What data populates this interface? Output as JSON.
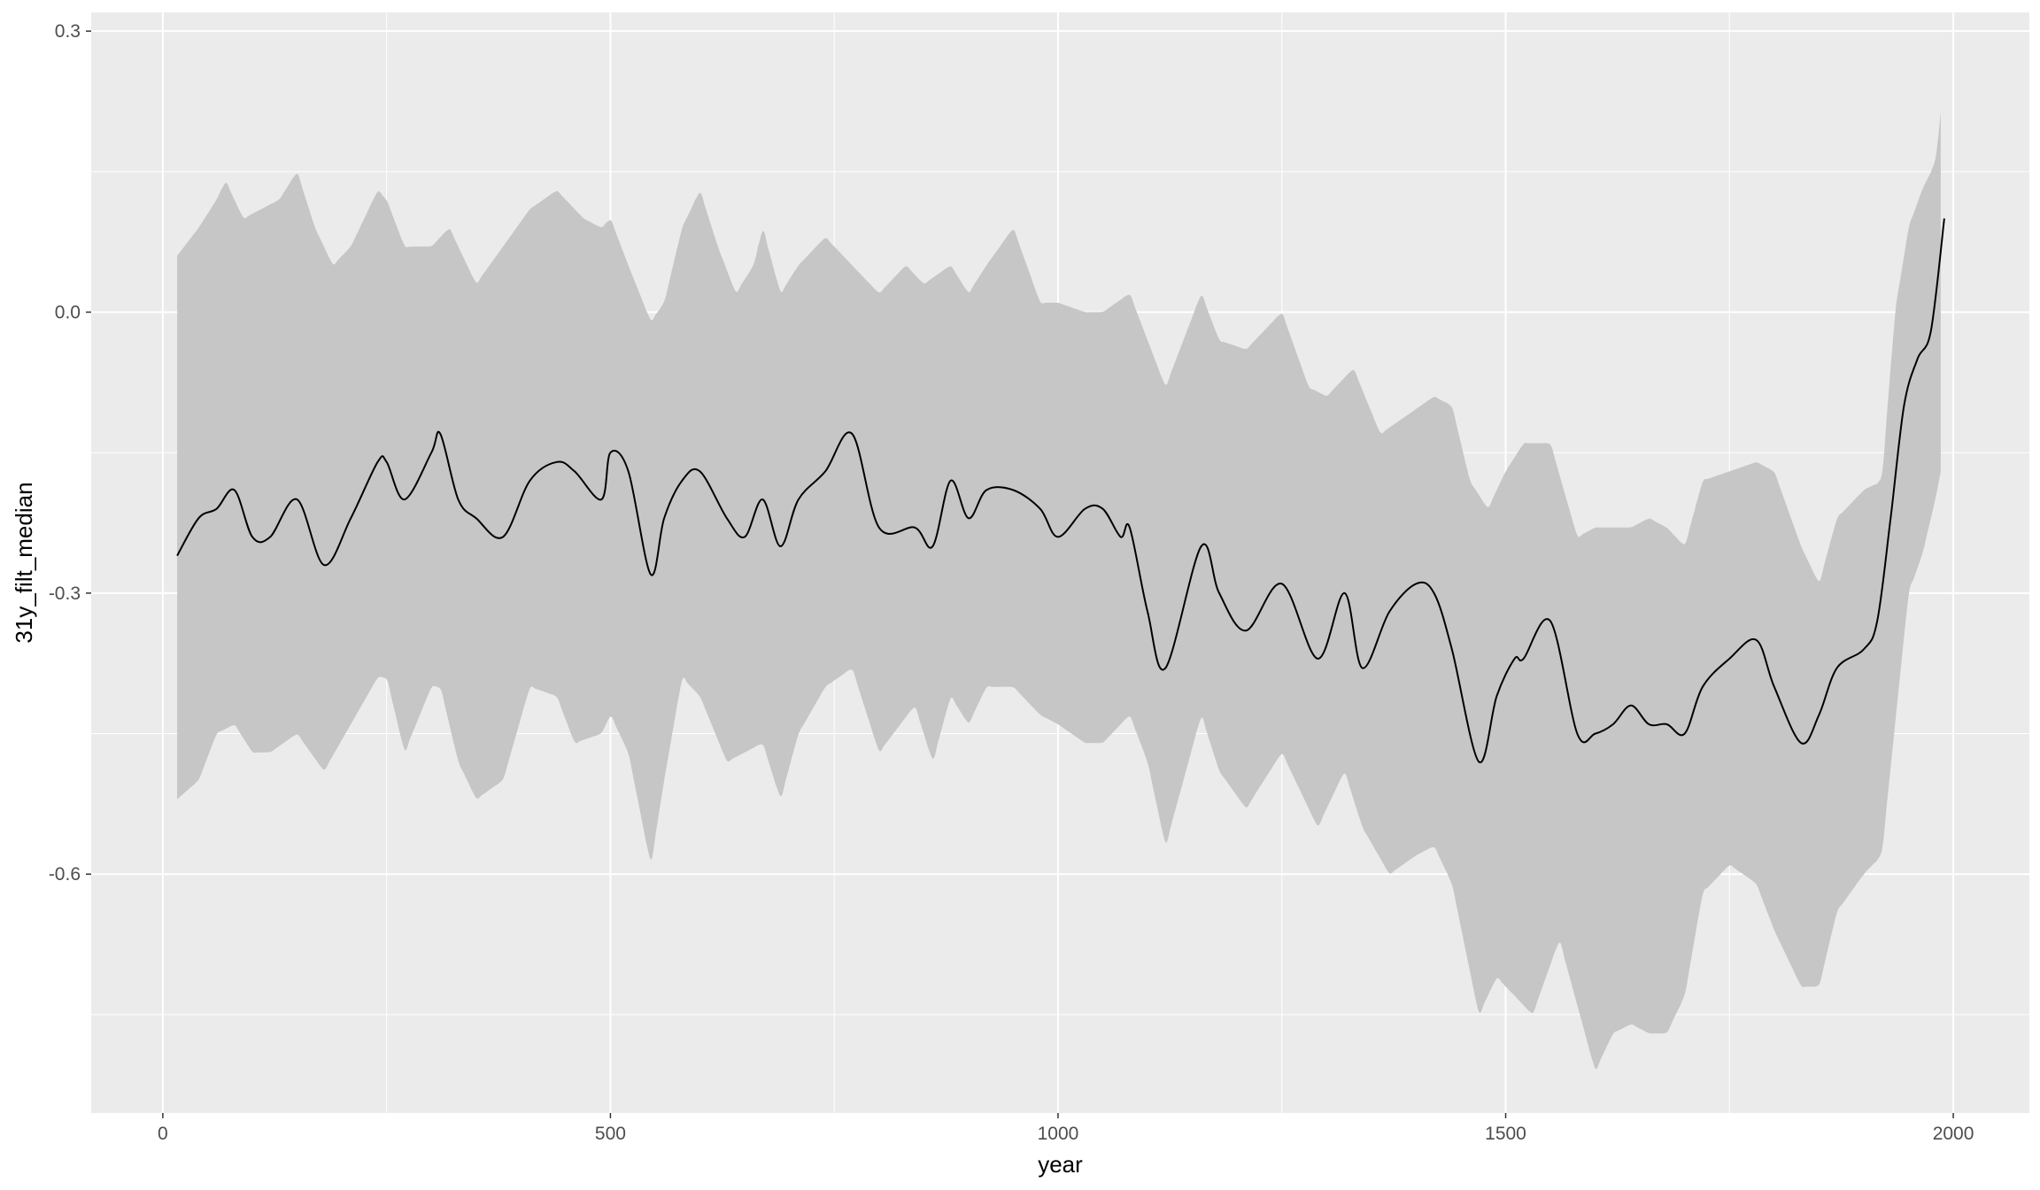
{
  "chart_data": {
    "type": "line",
    "title": "",
    "xlabel": "year",
    "ylabel": "31y_filt_median",
    "xlim": [
      -80,
      2085
    ],
    "ylim": [
      -0.855,
      0.32
    ],
    "x_ticks": [
      0,
      500,
      1000,
      1500,
      2000
    ],
    "x_tick_labels": [
      "0",
      "500",
      "1000",
      "1500",
      "2000"
    ],
    "y_ticks": [
      0.3,
      0.0,
      -0.3,
      -0.6
    ],
    "y_tick_labels": [
      "0.3",
      "0.0",
      "-0.3",
      "-0.6"
    ],
    "x_minor": [
      250,
      750,
      1250,
      1750
    ],
    "y_minor": [
      0.15,
      -0.15,
      -0.45,
      -0.75
    ],
    "grid": true,
    "legend": "none",
    "colors": {
      "panel": "#ebebeb",
      "grid": "#ffffff",
      "ribbon": "#c6c6c6",
      "line": "#000000"
    },
    "series": [
      {
        "role": "median",
        "x": [
          16,
          40,
          60,
          80,
          100,
          120,
          150,
          180,
          210,
          240,
          250,
          270,
          300,
          310,
          330,
          350,
          380,
          410,
          440,
          460,
          490,
          500,
          520,
          545,
          560,
          580,
          600,
          630,
          650,
          670,
          690,
          710,
          740,
          770,
          800,
          840,
          860,
          880,
          900,
          920,
          950,
          980,
          1000,
          1030,
          1050,
          1070,
          1080,
          1100,
          1120,
          1160,
          1180,
          1210,
          1250,
          1290,
          1320,
          1340,
          1370,
          1400,
          1420,
          1440,
          1470,
          1490,
          1510,
          1520,
          1550,
          1580,
          1600,
          1620,
          1640,
          1660,
          1680,
          1700,
          1720,
          1750,
          1780,
          1800,
          1830,
          1850,
          1870,
          1900,
          1915,
          1930,
          1945,
          1960,
          1975,
          1990
        ],
        "y": [
          -0.26,
          -0.22,
          -0.21,
          -0.19,
          -0.24,
          -0.24,
          -0.2,
          -0.27,
          -0.22,
          -0.16,
          -0.16,
          -0.2,
          -0.15,
          -0.13,
          -0.2,
          -0.22,
          -0.24,
          -0.18,
          -0.16,
          -0.17,
          -0.2,
          -0.15,
          -0.17,
          -0.28,
          -0.22,
          -0.18,
          -0.17,
          -0.22,
          -0.24,
          -0.2,
          -0.25,
          -0.2,
          -0.17,
          -0.13,
          -0.23,
          -0.23,
          -0.25,
          -0.18,
          -0.22,
          -0.19,
          -0.19,
          -0.21,
          -0.24,
          -0.21,
          -0.21,
          -0.24,
          -0.23,
          -0.32,
          -0.38,
          -0.25,
          -0.3,
          -0.34,
          -0.29,
          -0.37,
          -0.3,
          -0.38,
          -0.32,
          -0.29,
          -0.3,
          -0.36,
          -0.48,
          -0.41,
          -0.37,
          -0.37,
          -0.33,
          -0.45,
          -0.45,
          -0.44,
          -0.42,
          -0.44,
          -0.44,
          -0.45,
          -0.4,
          -0.37,
          -0.35,
          -0.4,
          -0.46,
          -0.43,
          -0.38,
          -0.36,
          -0.33,
          -0.22,
          -0.1,
          -0.05,
          -0.02,
          0.1
        ]
      },
      {
        "role": "upper-bound",
        "x": [
          16,
          40,
          60,
          70,
          90,
          110,
          130,
          150,
          170,
          190,
          210,
          240,
          250,
          270,
          300,
          320,
          350,
          380,
          410,
          440,
          470,
          490,
          500,
          520,
          545,
          560,
          580,
          600,
          620,
          640,
          660,
          670,
          690,
          710,
          740,
          770,
          800,
          830,
          850,
          880,
          900,
          920,
          950,
          980,
          1000,
          1030,
          1050,
          1080,
          1100,
          1120,
          1160,
          1180,
          1210,
          1250,
          1280,
          1300,
          1330,
          1360,
          1390,
          1420,
          1440,
          1460,
          1480,
          1500,
          1520,
          1550,
          1580,
          1600,
          1620,
          1640,
          1660,
          1680,
          1700,
          1720,
          1750,
          1780,
          1800,
          1830,
          1850,
          1870,
          1900,
          1920,
          1935,
          1950,
          1965,
          1980,
          1990
        ],
        "y": [
          0.06,
          0.09,
          0.12,
          0.14,
          0.1,
          0.11,
          0.12,
          0.15,
          0.09,
          0.05,
          0.07,
          0.13,
          0.12,
          0.07,
          0.07,
          0.09,
          0.03,
          0.07,
          0.11,
          0.13,
          0.1,
          0.09,
          0.1,
          0.05,
          -0.01,
          0.01,
          0.09,
          0.13,
          0.07,
          0.02,
          0.05,
          0.09,
          0.02,
          0.05,
          0.08,
          0.05,
          0.02,
          0.05,
          0.03,
          0.05,
          0.02,
          0.05,
          0.09,
          0.01,
          0.01,
          0.0,
          0.0,
          0.02,
          -0.03,
          -0.08,
          0.02,
          -0.03,
          -0.04,
          0.0,
          -0.08,
          -0.09,
          -0.06,
          -0.13,
          -0.11,
          -0.09,
          -0.1,
          -0.18,
          -0.21,
          -0.17,
          -0.14,
          -0.14,
          -0.24,
          -0.23,
          -0.23,
          -0.23,
          -0.22,
          -0.23,
          -0.25,
          -0.18,
          -0.17,
          -0.16,
          -0.17,
          -0.25,
          -0.29,
          -0.22,
          -0.19,
          -0.18,
          0.0,
          0.09,
          0.13,
          0.16,
          0.25
        ]
      },
      {
        "role": "lower-bound",
        "x": [
          16,
          40,
          60,
          80,
          100,
          120,
          150,
          180,
          210,
          240,
          250,
          270,
          300,
          310,
          330,
          350,
          380,
          410,
          440,
          460,
          490,
          500,
          520,
          545,
          560,
          580,
          600,
          630,
          650,
          670,
          690,
          710,
          740,
          770,
          800,
          840,
          860,
          880,
          900,
          920,
          950,
          980,
          1000,
          1030,
          1050,
          1080,
          1100,
          1120,
          1160,
          1180,
          1210,
          1250,
          1290,
          1320,
          1340,
          1370,
          1400,
          1420,
          1440,
          1470,
          1490,
          1510,
          1530,
          1560,
          1580,
          1600,
          1620,
          1640,
          1660,
          1680,
          1700,
          1720,
          1750,
          1780,
          1800,
          1830,
          1850,
          1870,
          1900,
          1920,
          1935,
          1950,
          1965,
          1980,
          1990
        ],
        "y": [
          -0.52,
          -0.5,
          -0.45,
          -0.44,
          -0.47,
          -0.47,
          -0.45,
          -0.49,
          -0.44,
          -0.39,
          -0.39,
          -0.47,
          -0.4,
          -0.4,
          -0.48,
          -0.52,
          -0.5,
          -0.4,
          -0.41,
          -0.46,
          -0.45,
          -0.43,
          -0.47,
          -0.59,
          -0.5,
          -0.39,
          -0.41,
          -0.48,
          -0.47,
          -0.46,
          -0.52,
          -0.45,
          -0.4,
          -0.38,
          -0.47,
          -0.42,
          -0.48,
          -0.41,
          -0.44,
          -0.4,
          -0.4,
          -0.43,
          -0.44,
          -0.46,
          -0.46,
          -0.43,
          -0.48,
          -0.57,
          -0.43,
          -0.49,
          -0.53,
          -0.47,
          -0.55,
          -0.49,
          -0.55,
          -0.6,
          -0.58,
          -0.57,
          -0.61,
          -0.75,
          -0.71,
          -0.73,
          -0.75,
          -0.67,
          -0.74,
          -0.81,
          -0.77,
          -0.76,
          -0.77,
          -0.77,
          -0.73,
          -0.62,
          -0.59,
          -0.61,
          -0.66,
          -0.72,
          -0.72,
          -0.64,
          -0.6,
          -0.58,
          -0.44,
          -0.3,
          -0.26,
          -0.2,
          -0.15
        ]
      }
    ]
  }
}
